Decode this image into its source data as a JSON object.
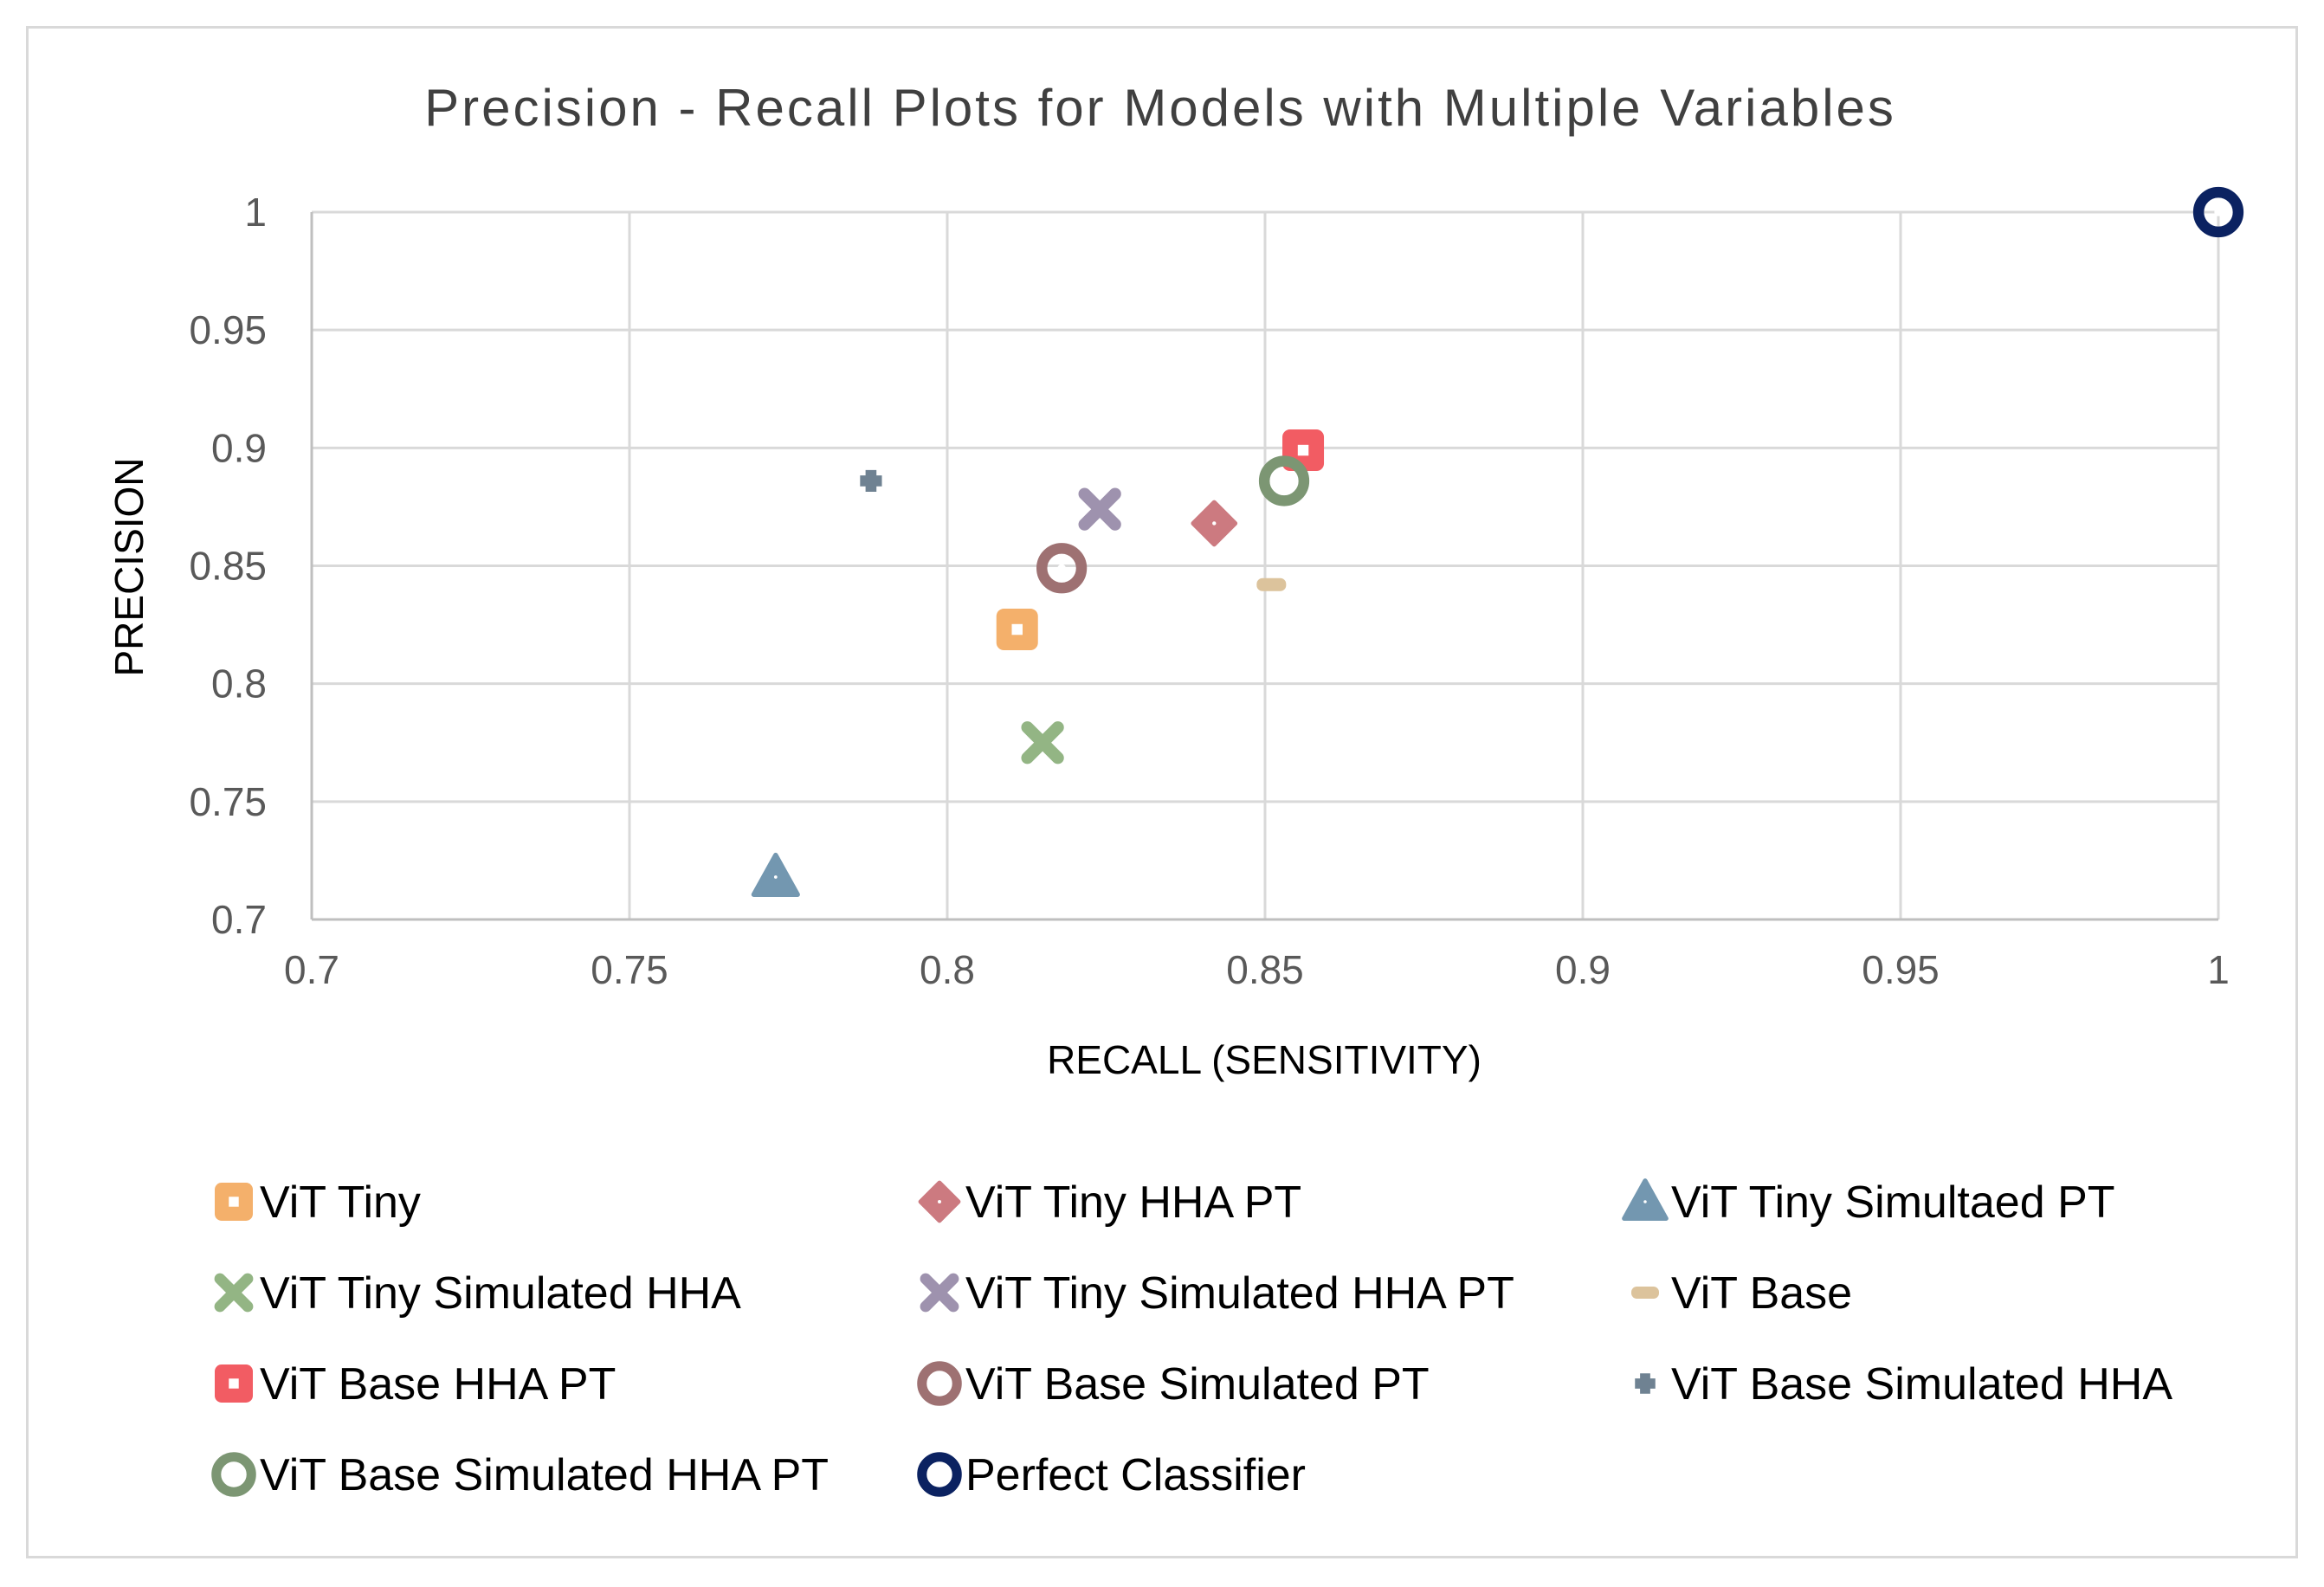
{
  "chart_data": {
    "type": "scatter",
    "title": "Precision - Recall Plots for Models with Multiple Variables",
    "xlabel": "RECALL (SENSITIVITY)",
    "ylabel": "PRECISION",
    "xlim": [
      0.7,
      1
    ],
    "ylim": [
      0.7,
      1
    ],
    "x_ticks": [
      0.7,
      0.75,
      0.8,
      0.85,
      0.9,
      0.95,
      1
    ],
    "y_ticks": [
      0.7,
      0.75,
      0.8,
      0.85,
      0.9,
      0.95,
      1
    ],
    "x_tick_labels": [
      "0.7",
      "0.75",
      "0.8",
      "0.85",
      "0.9",
      "0.95",
      "1"
    ],
    "y_tick_labels": [
      "0.7",
      "0.75",
      "0.8",
      "0.85",
      "0.9",
      "0.95",
      "1"
    ],
    "grid": true,
    "legend_position": "bottom",
    "series": [
      {
        "name": "ViT Tiny",
        "x": 0.811,
        "y": 0.823,
        "marker": "square-dot",
        "color": "#f4b06b"
      },
      {
        "name": "ViT Tiny HHA PT",
        "x": 0.842,
        "y": 0.868,
        "marker": "diamond",
        "color": "#cc7a80"
      },
      {
        "name": "ViT Tiny Simultaed PT",
        "x": 0.773,
        "y": 0.718,
        "marker": "triangle",
        "color": "#7397b0"
      },
      {
        "name": "ViT Tiny Simulated HHA",
        "x": 0.815,
        "y": 0.775,
        "marker": "x",
        "color": "#93b584"
      },
      {
        "name": "ViT Tiny Simulated HHA PT",
        "x": 0.824,
        "y": 0.874,
        "marker": "x",
        "color": "#9e92ae"
      },
      {
        "name": "ViT Base",
        "x": 0.851,
        "y": 0.842,
        "marker": "dash",
        "color": "#dcc39c"
      },
      {
        "name": "ViT Base HHA PT",
        "x": 0.856,
        "y": 0.899,
        "marker": "square-dot",
        "color": "#f25c63"
      },
      {
        "name": "ViT Base Simulated PT",
        "x": 0.818,
        "y": 0.849,
        "marker": "circle-dot",
        "color": "#9e7172"
      },
      {
        "name": "ViT Base Simulated HHA",
        "x": 0.788,
        "y": 0.886,
        "marker": "plus",
        "color": "#6f8292"
      },
      {
        "name": "ViT Base Simulated HHA PT",
        "x": 0.853,
        "y": 0.886,
        "marker": "circle-dot",
        "color": "#7c9673"
      },
      {
        "name": "Perfect Classifier",
        "x": 1,
        "y": 1,
        "marker": "circle-dot",
        "color": "#0b2261"
      }
    ]
  }
}
